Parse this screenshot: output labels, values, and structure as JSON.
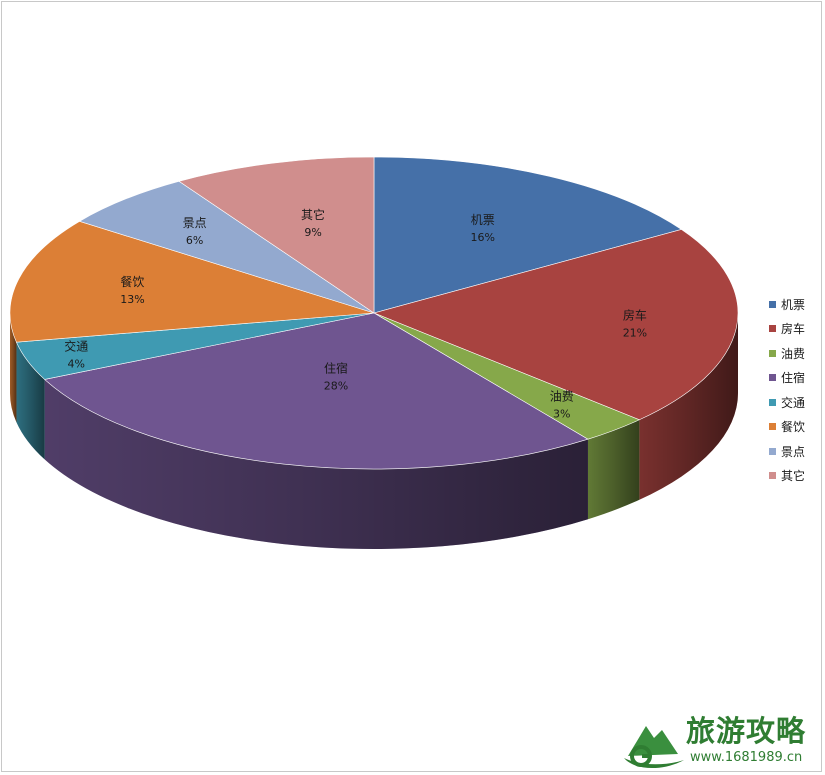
{
  "chart_data": {
    "type": "pie",
    "title": "",
    "series": [
      {
        "label": "机票",
        "percent_label": "16%",
        "value": 16,
        "color": "#4570a8"
      },
      {
        "label": "房车",
        "percent_label": "21%",
        "value": 21,
        "color": "#a84340"
      },
      {
        "label": "油费",
        "percent_label": "3%",
        "value": 3,
        "color": "#86a84a"
      },
      {
        "label": "住宿",
        "percent_label": "28%",
        "value": 28,
        "color": "#6f5590"
      },
      {
        "label": "交通",
        "percent_label": "4%",
        "value": 4,
        "color": "#3f9ab2"
      },
      {
        "label": "餐饮",
        "percent_label": "13%",
        "value": 13,
        "color": "#dc7f36"
      },
      {
        "label": "景点",
        "percent_label": "6%",
        "value": 6,
        "color": "#93a9cf"
      },
      {
        "label": "其它",
        "percent_label": "9%",
        "value": 9,
        "color": "#d08e8d"
      }
    ],
    "legend_placement": "right",
    "style": "3d-pie"
  },
  "watermark": {
    "title": "旅游攻略",
    "url": "www.1681989.cn"
  }
}
